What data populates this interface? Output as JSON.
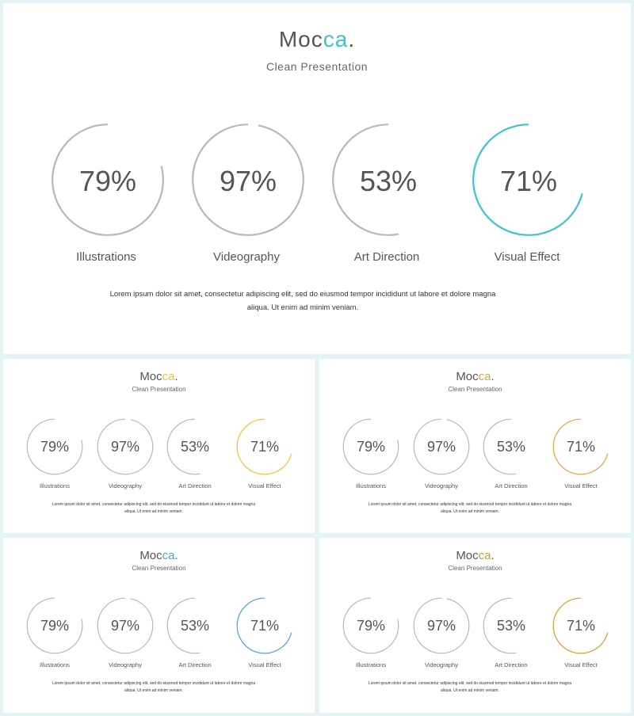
{
  "slides": [
    {
      "id": "slide-main",
      "brand": "Moc",
      "brand_accent": "ca",
      "brand_dot": ".",
      "subtitle": "Clean Presentation",
      "accent_color": "#3cc5cc",
      "items": [
        {
          "value": "79%",
          "percent": 79,
          "label": "Illustrations",
          "highlight": false
        },
        {
          "value": "97%",
          "percent": 97,
          "label": "Videography",
          "highlight": false
        },
        {
          "value": "53%",
          "percent": 53,
          "label": "Art Direction",
          "highlight": false
        },
        {
          "value": "71%",
          "percent": 71,
          "label": "Visual Effect",
          "highlight": true
        }
      ],
      "description": "Lorem ipsum dolor sit amet, consectetur adipiscing elit, sed do eiusmod tempor incididunt ut labore et dolore magna aliqua. Ut enim ad minim veniam."
    },
    {
      "id": "slide-1",
      "brand": "Moc",
      "brand_accent": "ca",
      "brand_dot": ".",
      "subtitle": "Clean Presentation",
      "accent_color": "#f2bf33",
      "items": [
        {
          "value": "79%",
          "percent": 79,
          "label": "Illustrations",
          "highlight": false
        },
        {
          "value": "97%",
          "percent": 97,
          "label": "Videography",
          "highlight": false
        },
        {
          "value": "53%",
          "percent": 53,
          "label": "Art Direction",
          "highlight": false
        },
        {
          "value": "71%",
          "percent": 71,
          "label": "Visual Effect",
          "highlight": true
        }
      ],
      "description": "Lorem ipsum dolor sit amet, consectetur adipiscing elit, sed do eiusmod tempor incididunt ut labore et dolore magna aliqua. Ut enim ad minim veniam."
    },
    {
      "id": "slide-2",
      "brand": "Moc",
      "brand_accent": "ca",
      "brand_dot": ".",
      "subtitle": "Clean Presentation",
      "accent_color": "#e3a33d",
      "items": [
        {
          "value": "79%",
          "percent": 79,
          "label": "Illustrations",
          "highlight": false
        },
        {
          "value": "97%",
          "percent": 97,
          "label": "Videography",
          "highlight": false
        },
        {
          "value": "53%",
          "percent": 53,
          "label": "Art Direction",
          "highlight": false
        },
        {
          "value": "71%",
          "percent": 71,
          "label": "Visual Effect",
          "highlight": true
        }
      ],
      "description": "Lorem ipsum dolor sit amet, consectetur adipiscing elit, sed do eiusmod tempor incididunt ut labore et dolore magna aliqua. Ut enim ad minim veniam."
    },
    {
      "id": "slide-3",
      "brand": "Moc",
      "brand_accent": "ca",
      "brand_dot": ".",
      "subtitle": "Clean Presentation",
      "accent_color": "#4d9fdc",
      "items": [
        {
          "value": "79%",
          "percent": 79,
          "label": "Illustrations",
          "highlight": false
        },
        {
          "value": "97%",
          "percent": 97,
          "label": "Videography",
          "highlight": false
        },
        {
          "value": "53%",
          "percent": 53,
          "label": "Art Direction",
          "highlight": false
        },
        {
          "value": "71%",
          "percent": 71,
          "label": "Visual Effect",
          "highlight": true
        }
      ],
      "description": "Lorem ipsum dolor sit amet, consectetur adipiscing elit, sed do eiusmod tempor incididunt ut labore et dolore magna aliqua. Ut enim ad minim veniam."
    },
    {
      "id": "slide-4",
      "brand": "Moc",
      "brand_accent": "ca",
      "brand_dot": ".",
      "subtitle": "Clean Presentation",
      "accent_color": "#d4a020",
      "items": [
        {
          "value": "79%",
          "percent": 79,
          "label": "Illustrations",
          "highlight": false
        },
        {
          "value": "97%",
          "percent": 97,
          "label": "Videography",
          "highlight": false
        },
        {
          "value": "53%",
          "percent": 53,
          "label": "Art Direction",
          "highlight": false
        },
        {
          "value": "71%",
          "percent": 71,
          "label": "Visual Effect",
          "highlight": true
        }
      ],
      "description": "Lorem ipsum dolor sit amet, consectetur adipiscing elit, sed do eiusmod tempor incididunt ut labore et dolore magna aliqua. Ut enim ad minim veniam."
    }
  ],
  "ring_color": "#b8b8b8"
}
